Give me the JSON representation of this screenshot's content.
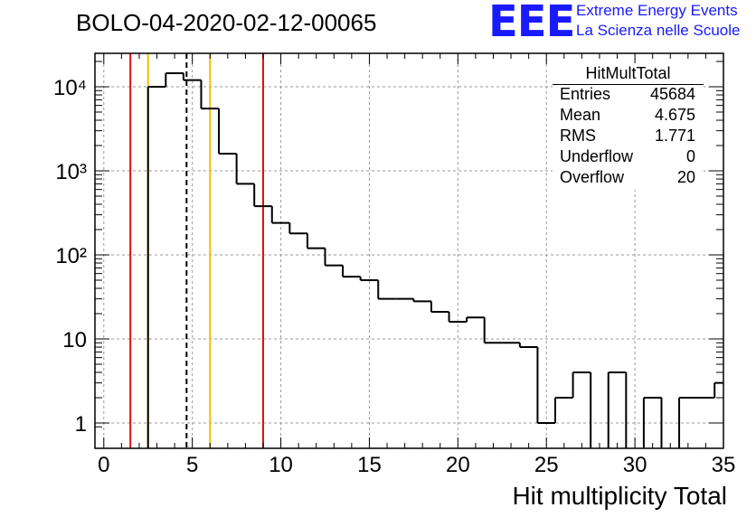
{
  "title": "BOLO-04-2020-02-12-00065",
  "logo": {
    "mark": "EEE",
    "line1": "Extreme Energy Events",
    "line2": "La Scienza nelle Scuole"
  },
  "stats": {
    "title": "HitMultTotal",
    "rows": [
      {
        "label": "Entries",
        "value": "45684"
      },
      {
        "label": "Mean",
        "value": "4.675"
      },
      {
        "label": "RMS",
        "value": "1.771"
      },
      {
        "label": "Underflow",
        "value": "0"
      },
      {
        "label": "Overflow",
        "value": "20"
      }
    ]
  },
  "colors": {
    "histogram": "#000000",
    "red_lines": "#e01010",
    "yellow_lines": "#f0c000",
    "mean_line": "#000000",
    "grid": "#9a9a9a"
  },
  "chart_data": {
    "type": "histogram",
    "xlabel": "Hit multiplicity Total",
    "ylabel": "",
    "xlim": [
      -0.5,
      35
    ],
    "ylim": [
      0.5,
      25000
    ],
    "yscale": "log",
    "grid": true,
    "x_ticks": [
      0,
      5,
      10,
      15,
      20,
      25,
      30,
      35
    ],
    "y_ticks": [
      {
        "value": 1,
        "label": "1"
      },
      {
        "value": 10,
        "label": "10"
      },
      {
        "value": 100,
        "label": "10²"
      },
      {
        "value": 1000,
        "label": "10³"
      },
      {
        "value": 10000,
        "label": "10⁴"
      }
    ],
    "bins": [
      {
        "x0": -0.5,
        "x1": 0.5,
        "count": 0
      },
      {
        "x0": 0.5,
        "x1": 1.5,
        "count": 0
      },
      {
        "x0": 1.5,
        "x1": 2.5,
        "count": 0
      },
      {
        "x0": 2.5,
        "x1": 3.5,
        "count": 10000
      },
      {
        "x0": 3.5,
        "x1": 4.5,
        "count": 14500
      },
      {
        "x0": 4.5,
        "x1": 5.5,
        "count": 12000
      },
      {
        "x0": 5.5,
        "x1": 6.5,
        "count": 5500
      },
      {
        "x0": 6.5,
        "x1": 7.5,
        "count": 1600
      },
      {
        "x0": 7.5,
        "x1": 8.5,
        "count": 700
      },
      {
        "x0": 8.5,
        "x1": 9.5,
        "count": 380
      },
      {
        "x0": 9.5,
        "x1": 10.5,
        "count": 240
      },
      {
        "x0": 10.5,
        "x1": 11.5,
        "count": 180
      },
      {
        "x0": 11.5,
        "x1": 12.5,
        "count": 120
      },
      {
        "x0": 12.5,
        "x1": 13.5,
        "count": 75
      },
      {
        "x0": 13.5,
        "x1": 14.5,
        "count": 55
      },
      {
        "x0": 14.5,
        "x1": 15.5,
        "count": 50
      },
      {
        "x0": 15.5,
        "x1": 16.5,
        "count": 30
      },
      {
        "x0": 16.5,
        "x1": 17.5,
        "count": 30
      },
      {
        "x0": 17.5,
        "x1": 18.5,
        "count": 28
      },
      {
        "x0": 18.5,
        "x1": 19.5,
        "count": 21
      },
      {
        "x0": 19.5,
        "x1": 20.5,
        "count": 16
      },
      {
        "x0": 20.5,
        "x1": 21.5,
        "count": 18
      },
      {
        "x0": 21.5,
        "x1": 22.5,
        "count": 9
      },
      {
        "x0": 22.5,
        "x1": 23.5,
        "count": 9
      },
      {
        "x0": 23.5,
        "x1": 24.5,
        "count": 8
      },
      {
        "x0": 24.5,
        "x1": 25.5,
        "count": 1
      },
      {
        "x0": 25.5,
        "x1": 26.5,
        "count": 2
      },
      {
        "x0": 26.5,
        "x1": 27.5,
        "count": 4
      },
      {
        "x0": 27.5,
        "x1": 28.5,
        "count": 0
      },
      {
        "x0": 28.5,
        "x1": 29.5,
        "count": 4
      },
      {
        "x0": 29.5,
        "x1": 30.5,
        "count": 0
      },
      {
        "x0": 30.5,
        "x1": 31.5,
        "count": 2
      },
      {
        "x0": 31.5,
        "x1": 32.5,
        "count": 0
      },
      {
        "x0": 32.5,
        "x1": 33.5,
        "count": 2
      },
      {
        "x0": 33.5,
        "x1": 34.5,
        "count": 2
      },
      {
        "x0": 34.5,
        "x1": 35,
        "count": 3
      }
    ],
    "vertical_lines": [
      {
        "x": 1.5,
        "color": "red",
        "style": "solid"
      },
      {
        "x": 2.5,
        "color": "yellow",
        "style": "solid"
      },
      {
        "x": 4.675,
        "color": "black",
        "style": "dashed"
      },
      {
        "x": 6,
        "color": "yellow",
        "style": "solid"
      },
      {
        "x": 9,
        "color": "red",
        "style": "solid"
      }
    ]
  }
}
